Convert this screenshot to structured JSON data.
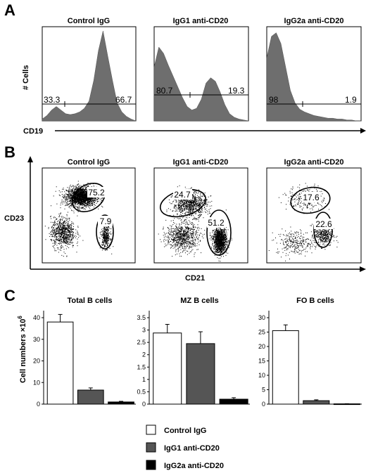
{
  "panels": {
    "A": {
      "letter": "A",
      "ylabel": "# Cells",
      "xlabel": "CD19",
      "plots": [
        {
          "title": "Control IgG",
          "gate_left": "33.3",
          "gate_right": "66.7"
        },
        {
          "title": "IgG1 anti-CD20",
          "gate_left": "80.7",
          "gate_right": "19.3"
        },
        {
          "title": "IgG2a anti-CD20",
          "gate_left": "98",
          "gate_right": "1.9"
        }
      ]
    },
    "B": {
      "letter": "B",
      "ylabel": "CD23",
      "xlabel": "CD21",
      "plots": [
        {
          "title": "Control IgG",
          "gate_upper": "75.2",
          "gate_lower": "7.9"
        },
        {
          "title": "IgG1 anti-CD20",
          "gate_upper": "24.7",
          "gate_lower": "51.2"
        },
        {
          "title": "IgG2a anti-CD20",
          "gate_upper": "17.6",
          "gate_lower": "22.6"
        }
      ]
    },
    "C": {
      "letter": "C",
      "ylabel_main": "Cell numbers ×10",
      "ylabel_sup": "6"
    }
  },
  "legend": {
    "items": [
      {
        "label": "Control IgG",
        "color": "#ffffff"
      },
      {
        "label": "IgG1 anti-CD20",
        "color": "#555555"
      },
      {
        "label": "IgG2a anti-CD20",
        "color": "#000000"
      }
    ]
  },
  "chart_data": [
    {
      "type": "area",
      "title": "Control IgG",
      "xlabel": "CD19",
      "ylabel": "# Cells",
      "gates": [
        "33.3",
        "66.7"
      ],
      "x": [
        0,
        0.05,
        0.1,
        0.15,
        0.2,
        0.25,
        0.3,
        0.35,
        0.4,
        0.45,
        0.5,
        0.55,
        0.6,
        0.65,
        0.7,
        0.75,
        0.8,
        0.85,
        0.9,
        0.95,
        1.0
      ],
      "y": [
        0.02,
        0.06,
        0.12,
        0.16,
        0.12,
        0.08,
        0.07,
        0.08,
        0.1,
        0.14,
        0.22,
        0.45,
        0.78,
        1.0,
        0.72,
        0.45,
        0.2,
        0.1,
        0.05,
        0.02,
        0.0
      ]
    },
    {
      "type": "area",
      "title": "IgG1 anti-CD20",
      "xlabel": "CD19",
      "ylabel": "# Cells",
      "gates": [
        "80.7",
        "19.3"
      ],
      "x": [
        0,
        0.05,
        0.1,
        0.15,
        0.2,
        0.25,
        0.3,
        0.35,
        0.4,
        0.45,
        0.5,
        0.55,
        0.6,
        0.65,
        0.7,
        0.75,
        0.8,
        0.85,
        0.9,
        0.95,
        1.0
      ],
      "y": [
        0.6,
        0.82,
        0.75,
        0.62,
        0.5,
        0.38,
        0.26,
        0.16,
        0.12,
        0.14,
        0.24,
        0.42,
        0.48,
        0.44,
        0.32,
        0.18,
        0.08,
        0.04,
        0.02,
        0.01,
        0.0
      ]
    },
    {
      "type": "area",
      "title": "IgG2a anti-CD20",
      "xlabel": "CD19",
      "ylabel": "# Cells",
      "gates": [
        "98",
        "1.9"
      ],
      "x": [
        0,
        0.05,
        0.1,
        0.15,
        0.2,
        0.25,
        0.3,
        0.35,
        0.4,
        0.45,
        0.5,
        0.55,
        0.6,
        0.65,
        0.7,
        0.75,
        0.8,
        0.85,
        0.9,
        0.95,
        1.0
      ],
      "y": [
        0.7,
        0.94,
        0.98,
        0.86,
        0.6,
        0.34,
        0.2,
        0.13,
        0.1,
        0.08,
        0.06,
        0.05,
        0.04,
        0.03,
        0.03,
        0.02,
        0.02,
        0.01,
        0.01,
        0.0,
        0.0
      ]
    },
    {
      "type": "scatter",
      "title": "Control IgG",
      "xlabel": "CD21",
      "ylabel": "CD23",
      "gates": [
        {
          "label": "75.2"
        },
        {
          "label": "7.9"
        }
      ],
      "populations": [
        {
          "cx": 0.42,
          "cy": 0.7,
          "sx": 0.16,
          "sy": 0.1,
          "n": 2100
        },
        {
          "cx": 0.22,
          "cy": 0.32,
          "sx": 0.13,
          "sy": 0.16,
          "n": 800
        },
        {
          "cx": 0.68,
          "cy": 0.28,
          "sx": 0.05,
          "sy": 0.12,
          "n": 350
        }
      ]
    },
    {
      "type": "scatter",
      "title": "IgG1 anti-CD20",
      "xlabel": "CD21",
      "ylabel": "CD23",
      "gates": [
        {
          "label": "24.7"
        },
        {
          "label": "51.2"
        }
      ],
      "populations": [
        {
          "cx": 0.38,
          "cy": 0.62,
          "sx": 0.18,
          "sy": 0.13,
          "n": 900
        },
        {
          "cx": 0.7,
          "cy": 0.24,
          "sx": 0.07,
          "sy": 0.13,
          "n": 1400
        },
        {
          "cx": 0.3,
          "cy": 0.28,
          "sx": 0.17,
          "sy": 0.15,
          "n": 800
        }
      ]
    },
    {
      "type": "scatter",
      "title": "IgG2a anti-CD20",
      "xlabel": "CD21",
      "ylabel": "CD23",
      "gates": [
        {
          "label": "17.6"
        },
        {
          "label": "22.6"
        }
      ],
      "populations": [
        {
          "cx": 0.42,
          "cy": 0.68,
          "sx": 0.2,
          "sy": 0.13,
          "n": 260
        },
        {
          "cx": 0.6,
          "cy": 0.3,
          "sx": 0.1,
          "sy": 0.12,
          "n": 420
        },
        {
          "cx": 0.3,
          "cy": 0.22,
          "sx": 0.2,
          "sy": 0.13,
          "n": 280
        }
      ]
    },
    {
      "type": "bar",
      "title": "Total B cells",
      "categories": [
        "Control IgG",
        "IgG1 anti-CD20",
        "IgG2a anti-CD20"
      ],
      "values": [
        38,
        6.5,
        1.0
      ],
      "errors": [
        3.5,
        1.0,
        0.3
      ],
      "ylim": [
        0,
        40
      ],
      "yticks": [
        0,
        10,
        20,
        30,
        40
      ],
      "ytick_labels": [
        "0",
        "10",
        "20",
        "30",
        "40"
      ],
      "colors": [
        "#ffffff",
        "#555555",
        "#000000"
      ]
    },
    {
      "type": "bar",
      "title": "MZ B cells",
      "categories": [
        "Control IgG",
        "IgG1 anti-CD20",
        "IgG2a anti-CD20"
      ],
      "values": [
        2.88,
        2.45,
        0.2
      ],
      "errors": [
        0.35,
        0.48,
        0.06
      ],
      "ylim": [
        0,
        3.5
      ],
      "yticks": [
        0,
        0.5,
        1,
        1.5,
        2,
        2.5,
        3,
        3.5
      ],
      "ytick_labels": [
        "0",
        "0.5",
        "1",
        "1.5",
        "2",
        "2.5",
        "3",
        "3.5"
      ],
      "colors": [
        "#ffffff",
        "#555555",
        "#000000"
      ]
    },
    {
      "type": "bar",
      "title": "FO B cells",
      "categories": [
        "Control IgG",
        "IgG1 anti-CD20",
        "IgG2a anti-CD20"
      ],
      "values": [
        25.5,
        1.2,
        0.1
      ],
      "errors": [
        2.0,
        0.3,
        0.05
      ],
      "ylim": [
        0,
        30
      ],
      "yticks": [
        0,
        5,
        10,
        15,
        20,
        25,
        30
      ],
      "ytick_labels": [
        "0",
        "5",
        "10",
        "15",
        "20",
        "25",
        "30"
      ],
      "colors": [
        "#ffffff",
        "#555555",
        "#000000"
      ]
    }
  ]
}
